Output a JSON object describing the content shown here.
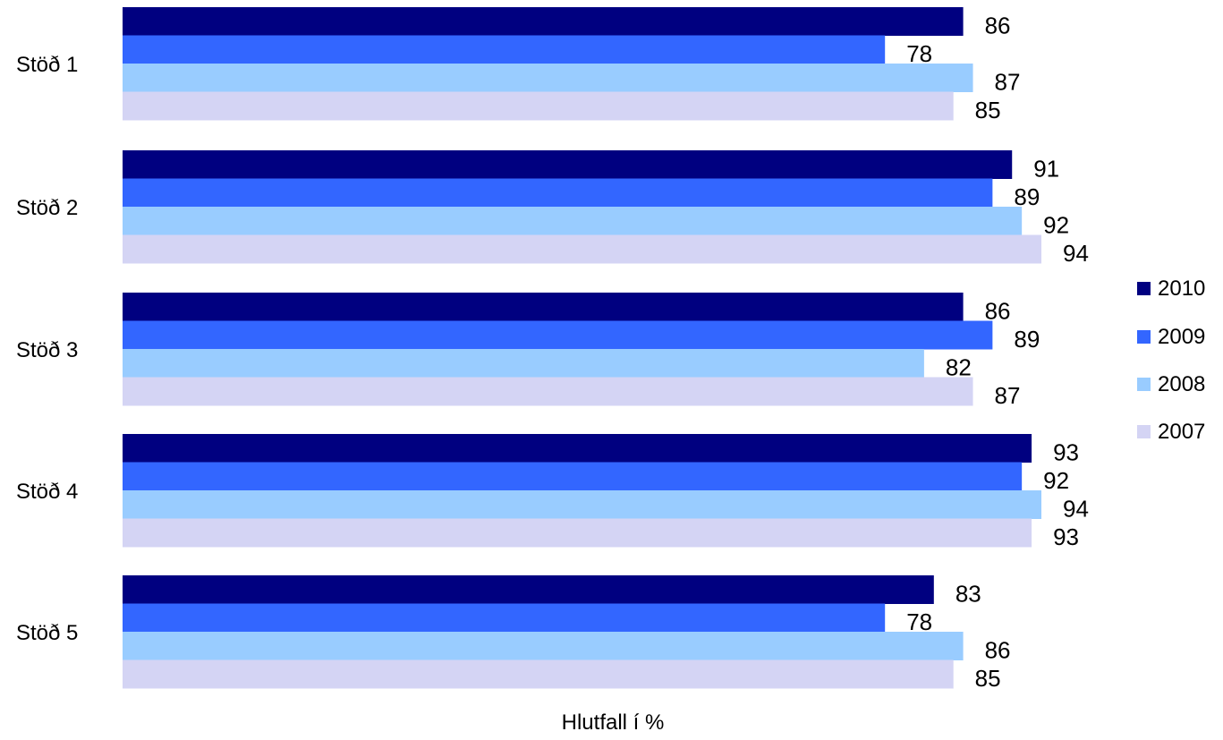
{
  "chart_data": {
    "type": "bar",
    "orientation": "horizontal",
    "categories": [
      "Stöð 1",
      "Stöð 2",
      "Stöð 3",
      "Stöð 4",
      "Stöð 5"
    ],
    "series": [
      {
        "name": "2010",
        "color": "#000080",
        "values": [
          86,
          91,
          86,
          93,
          83
        ]
      },
      {
        "name": "2009",
        "color": "#3366FF",
        "values": [
          78,
          89,
          89,
          92,
          78
        ]
      },
      {
        "name": "2008",
        "color": "#99CCFF",
        "values": [
          87,
          92,
          82,
          94,
          86
        ]
      },
      {
        "name": "2007",
        "color": "#D4D4F4",
        "values": [
          85,
          94,
          87,
          93,
          85
        ]
      }
    ],
    "xlabel": "Hlutfall í %",
    "ylabel": "",
    "xlim": [
      0,
      94
    ],
    "grid": false,
    "legend": "right",
    "data_labels": true
  }
}
